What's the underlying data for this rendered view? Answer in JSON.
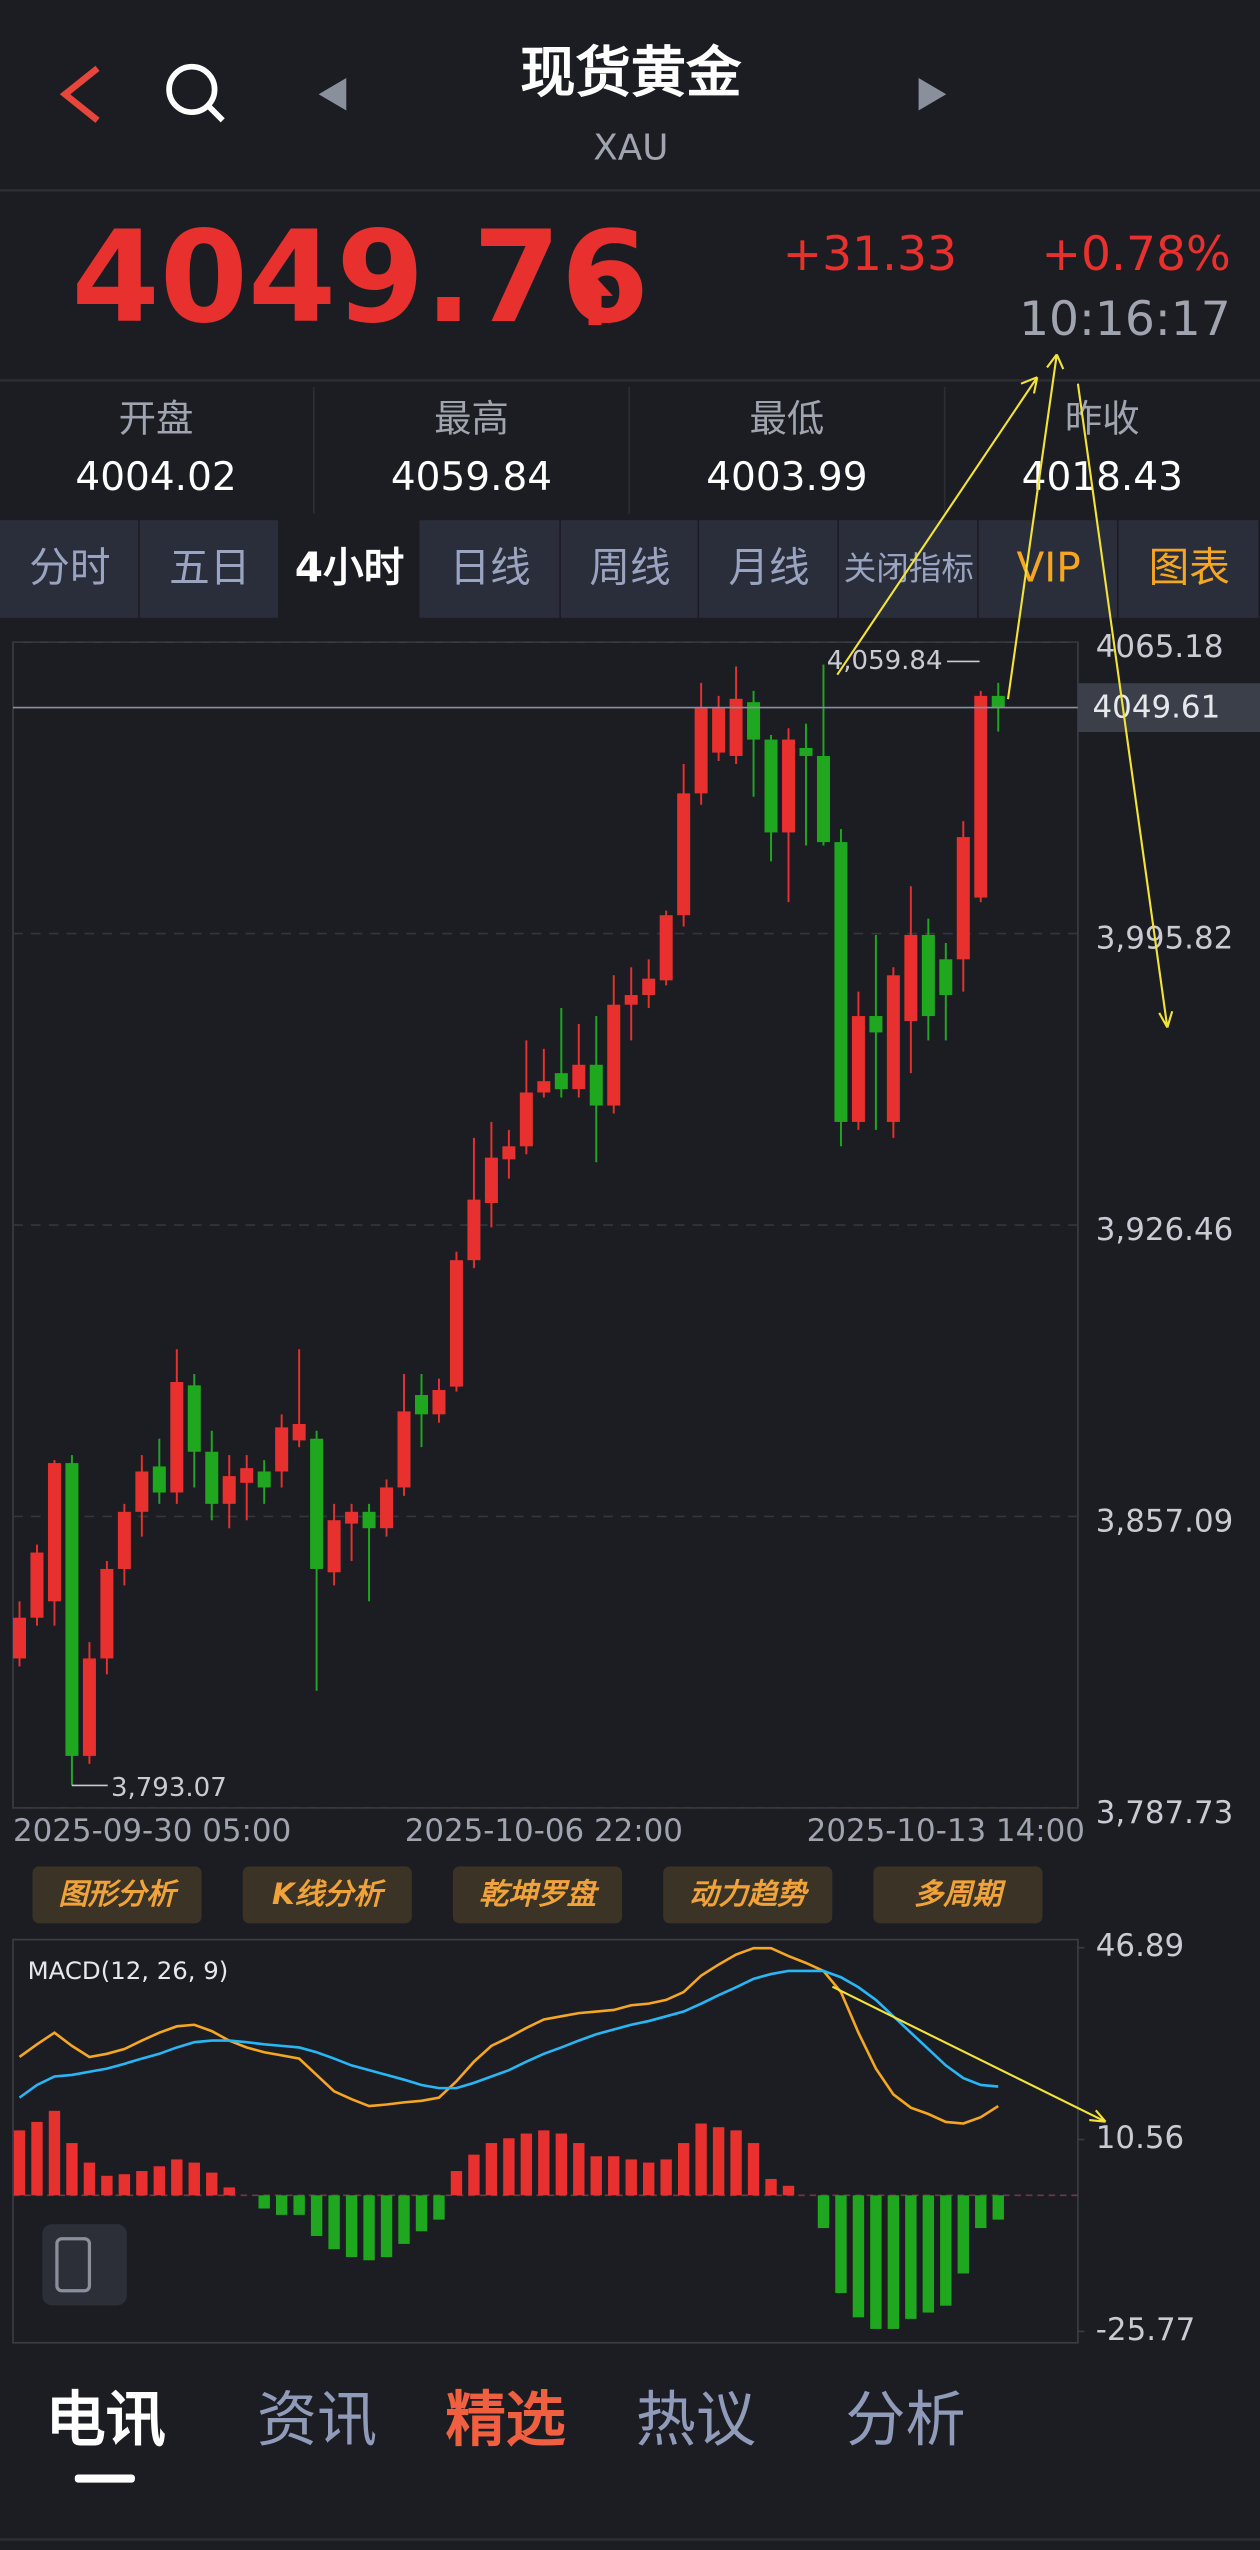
{
  "header": {
    "title": "现货黄金",
    "subtitle": "XAU"
  },
  "quote": {
    "price": 4049.76,
    "change": "+31.33",
    "change_percent": "+0.78%",
    "time": "10:16:17"
  },
  "stats": [
    {
      "label": "开盘",
      "value": 4004.02
    },
    {
      "label": "最高",
      "value": 4059.84
    },
    {
      "label": "最低",
      "value": 4003.99
    },
    {
      "label": "昨收",
      "value": 4018.43
    }
  ],
  "period_tabs": [
    "分时",
    "五日",
    "4小时",
    "日线",
    "周线",
    "月线",
    "关闭指标",
    "VIP",
    "图表"
  ],
  "tools": [
    "图形分析",
    "K线分析",
    "乾坤罗盘",
    "动力趋势",
    "多周期"
  ],
  "news_tabs": [
    "电讯",
    "资讯",
    "精选",
    "热议",
    "分析"
  ],
  "chart_data": [
    {
      "type": "candlestick",
      "categories": [
        "2025-09-30 05:00",
        null,
        null,
        null,
        null,
        null,
        null,
        null,
        null,
        null,
        null,
        null,
        null,
        null,
        null,
        null,
        null,
        null,
        null,
        null,
        null,
        null,
        null,
        null,
        null,
        null,
        null,
        null,
        null,
        null,
        "2025-10-06 22:00",
        null,
        null,
        null,
        null,
        null,
        null,
        null,
        null,
        null,
        null,
        null,
        null,
        null,
        null,
        null,
        null,
        null,
        null,
        null,
        null,
        null,
        null,
        "2025-10-13 14:00",
        null,
        null,
        null
      ],
      "open": [
        3823.3,
        3833.0,
        3836.9,
        3869.8,
        3800.1,
        3823.3,
        3844.6,
        3858.2,
        3869.0,
        3862.8,
        3888.3,
        3872.5,
        3860.1,
        3865.1,
        3867.8,
        3867.8,
        3875.2,
        3875.6,
        3843.8,
        3855.4,
        3858.2,
        3854.3,
        3864.0,
        3886.0,
        3881.4,
        3888.0,
        3918.1,
        3931.7,
        3942.1,
        3945.2,
        3958.0,
        3962.6,
        3958.8,
        3964.6,
        3954.9,
        3978.9,
        3981.2,
        3984.7,
        4000.2,
        4029.2,
        4038.9,
        4038.1,
        4050.9,
        4042.0,
        4019.9,
        4040.0,
        4038.1,
        4017.6,
        3951.0,
        3976.2,
        3951.0,
        3975.0,
        3995.5,
        3989.7,
        3989.7,
        4004.4,
        4052.4
      ],
      "high": [
        3836.9,
        3850.4,
        3870.5,
        3871.7,
        3827.2,
        3846.5,
        3860.1,
        3871.7,
        3875.6,
        3896.9,
        3891.0,
        3877.5,
        3871.7,
        3871.7,
        3870.5,
        3881.4,
        3896.9,
        3877.5,
        3860.1,
        3860.1,
        3860.1,
        3865.9,
        3891.0,
        3891.0,
        3889.9,
        3920.1,
        3947.2,
        3951.0,
        3949.1,
        3970.4,
        3968.4,
        3978.1,
        3974.3,
        3976.2,
        3985.9,
        3987.8,
        3989.7,
        4001.3,
        4036.2,
        4055.5,
        4052.4,
        4059.4,
        4053.6,
        4043.1,
        4044.7,
        4045.8,
        4059.84,
        4020.7,
        3982.0,
        3995.5,
        3987.8,
        4007.1,
        3999.4,
        3993.6,
        4022.6,
        4053.6,
        4055.5
      ],
      "low": [
        3821.4,
        3831.1,
        3831.1,
        3793.07,
        3798.2,
        3819.5,
        3840.7,
        3852.3,
        3860.1,
        3860.1,
        3864.0,
        3856.2,
        3854.3,
        3856.2,
        3860.1,
        3864.0,
        3873.6,
        3815.6,
        3840.7,
        3846.5,
        3836.9,
        3852.3,
        3862.0,
        3873.6,
        3879.4,
        3886.8,
        3916.2,
        3925.9,
        3937.5,
        3943.3,
        3956.8,
        3956.8,
        3956.8,
        3941.4,
        3953.0,
        3970.4,
        3978.1,
        3983.5,
        3997.5,
        4026.5,
        4036.9,
        4036.2,
        4028.4,
        4013.0,
        4003.3,
        4016.8,
        4016.8,
        3945.2,
        3949.1,
        3949.1,
        3947.2,
        3962.6,
        3970.4,
        3970.4,
        3982.0,
        4003.3,
        4043.9
      ],
      "close": [
        3833.0,
        3848.5,
        3869.8,
        3800.1,
        3823.3,
        3844.6,
        3858.2,
        3867.8,
        3862.8,
        3889.1,
        3872.5,
        3860.1,
        3866.7,
        3868.6,
        3864.0,
        3878.3,
        3879.1,
        3844.6,
        3856.2,
        3858.2,
        3854.3,
        3864.0,
        3882.1,
        3881.4,
        3887.2,
        3918.1,
        3932.5,
        3942.5,
        3945.2,
        3958.0,
        3960.7,
        3958.8,
        3964.6,
        3954.9,
        3978.9,
        3981.2,
        3985.1,
        4000.2,
        4029.2,
        4049.7,
        4049.7,
        4051.7,
        4042.0,
        4019.9,
        4042.0,
        4038.1,
        4017.6,
        3951.0,
        3976.2,
        3972.3,
        3985.9,
        3995.5,
        3976.2,
        3981.2,
        4018.8,
        4052.4,
        4049.61
      ],
      "up_color": "#e8302e",
      "down_color": "#1fa81f",
      "ylim": [
        3787.73,
        4065.18
      ],
      "yticks": [
        4065.18,
        {
          "value": 3995.82,
          "label": "3,995.82"
        },
        {
          "value": 3926.46,
          "label": "3,926.46"
        },
        {
          "value": 3857.09,
          "label": "3,857.09"
        },
        {
          "value": 3787.73,
          "label": "3,787.73"
        }
      ],
      "grid": true,
      "last_price": 4049.61,
      "annotations": [
        {
          "value": 4059.84,
          "label": "4,059.84"
        },
        {
          "value": 3793.07,
          "label": "3,793.07"
        }
      ]
    },
    {
      "type": "macd",
      "title": "MACD(12, 26, 9)",
      "ylim": [
        -25.77,
        46.89
      ],
      "yticks": [
        46.89,
        10.56,
        -25.77
      ],
      "series": [
        {
          "color": "#f5a623",
          "values": [
            26.2,
            28.6,
            30.8,
            28.3,
            26.2,
            26.8,
            27.7,
            29.3,
            30.8,
            32.0,
            32.3,
            31.1,
            29.3,
            28.0,
            27.1,
            26.5,
            25.9,
            22.8,
            19.7,
            18.2,
            16.9,
            17.2,
            17.6,
            17.9,
            18.5,
            21.6,
            25.3,
            28.3,
            29.9,
            31.7,
            33.3,
            33.9,
            34.5,
            34.8,
            35.1,
            36.0,
            36.3,
            37.0,
            38.5,
            41.6,
            43.7,
            45.6,
            46.8,
            46.8,
            45.3,
            44.0,
            42.5,
            38.5,
            30.8,
            24.0,
            19.1,
            16.6,
            15.4,
            13.9,
            13.6,
            14.8,
            16.9
          ]
        },
        {
          "color": "#29b6f6",
          "values": [
            18.5,
            20.9,
            22.5,
            22.8,
            23.4,
            24.0,
            24.9,
            25.9,
            26.8,
            28.0,
            29.0,
            29.3,
            29.3,
            29.0,
            28.6,
            28.3,
            28.0,
            27.1,
            25.9,
            24.6,
            23.7,
            22.8,
            21.9,
            20.9,
            20.3,
            20.3,
            21.3,
            22.5,
            23.7,
            25.3,
            26.8,
            28.0,
            29.3,
            30.5,
            31.4,
            32.3,
            33.0,
            33.9,
            34.8,
            36.3,
            37.9,
            39.4,
            41.0,
            41.9,
            42.5,
            42.5,
            42.5,
            41.3,
            39.4,
            37.0,
            33.9,
            30.8,
            27.7,
            24.6,
            22.2,
            20.9,
            20.6
          ]
        }
      ],
      "histogram": {
        "up_color": "#e8302e",
        "down_color": "#1fa81f",
        "values": [
          12.3,
          13.9,
          16.0,
          9.9,
          6.2,
          3.7,
          4.0,
          4.6,
          5.5,
          6.8,
          6.2,
          4.3,
          1.5,
          0,
          -2.5,
          -3.7,
          -3.7,
          -7.7,
          -10.2,
          -11.7,
          -12.3,
          -11.7,
          -9.2,
          -6.8,
          -4.6,
          4.6,
          7.7,
          9.9,
          10.8,
          11.7,
          12.3,
          11.7,
          9.9,
          7.4,
          7.4,
          6.8,
          6.2,
          6.8,
          9.9,
          13.6,
          12.9,
          12.3,
          9.9,
          3.1,
          1.8,
          0,
          -6.2,
          -18.5,
          -23.1,
          -25.3,
          -25.3,
          -23.4,
          -22.2,
          -20.9,
          -14.8,
          -6.2,
          -4.6
        ]
      }
    }
  ]
}
